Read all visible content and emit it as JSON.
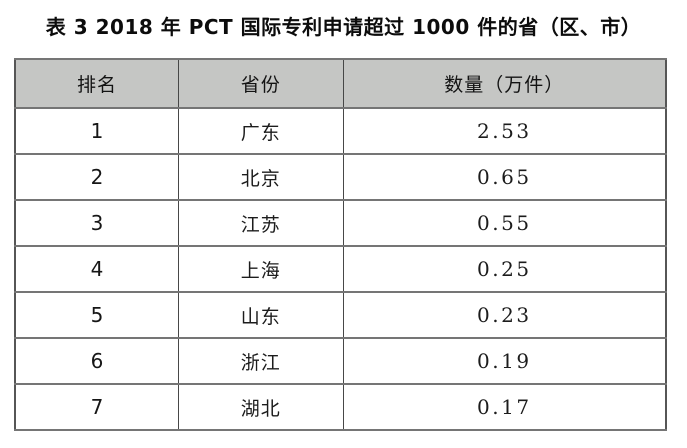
{
  "page": {
    "background": "#ffffff"
  },
  "title": "表 3 2018 年 PCT 国际专利申请超过 1000 件的省（区、市）",
  "table": {
    "header_bg": "#c5c6c4",
    "border_color": "#6a6a6a",
    "columns": {
      "rank": "排名",
      "province": "省份",
      "quantity": "数量（万件）"
    },
    "rows": [
      {
        "rank": "1",
        "province": "广东",
        "quantity": "2.53"
      },
      {
        "rank": "2",
        "province": "北京",
        "quantity": "0.65"
      },
      {
        "rank": "3",
        "province": "江苏",
        "quantity": "0.55"
      },
      {
        "rank": "4",
        "province": "上海",
        "quantity": "0.25"
      },
      {
        "rank": "5",
        "province": "山东",
        "quantity": "0.23"
      },
      {
        "rank": "6",
        "province": "浙江",
        "quantity": "0.19"
      },
      {
        "rank": "7",
        "province": "湖北",
        "quantity": "0.17"
      }
    ]
  },
  "chart_data": {
    "type": "table",
    "title": "表 3 2018 年 PCT 国际专利申请超过 1000 件的省（区、市）",
    "columns": [
      "排名",
      "省份",
      "数量（万件）"
    ],
    "rows": [
      [
        1,
        "广东",
        2.53
      ],
      [
        2,
        "北京",
        0.65
      ],
      [
        3,
        "江苏",
        0.55
      ],
      [
        4,
        "上海",
        0.25
      ],
      [
        5,
        "山东",
        0.23
      ],
      [
        6,
        "浙江",
        0.19
      ],
      [
        7,
        "湖北",
        0.17
      ]
    ]
  }
}
